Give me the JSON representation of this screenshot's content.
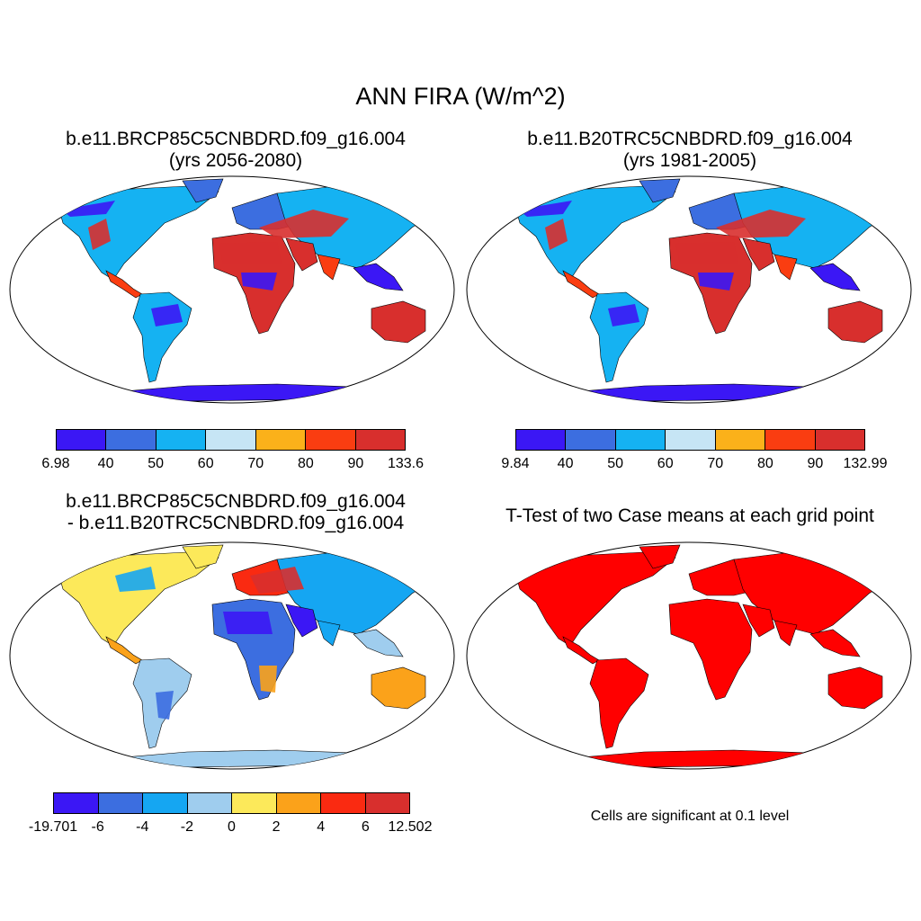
{
  "title": "ANN FIRA (W/m^2)",
  "panels": [
    {
      "line1": "b.e11.BRCP85C5CNBDRD.f09_g16.004",
      "line2": "(yrs 2056-2080)"
    },
    {
      "line1": "b.e11.B20TRC5CNBDRD.f09_g16.004",
      "line2": "(yrs 1981-2005)"
    },
    {
      "line1": "b.e11.BRCP85C5CNBDRD.f09_g16.004",
      "line2": "- b.e11.B20TRC5CNBDRD.f09_g16.004"
    },
    {
      "line1": "T-Test of two Case means at each grid point",
      "line2": ""
    }
  ],
  "colorbars": [
    {
      "labels": [
        "6.98",
        "40",
        "50",
        "60",
        "70",
        "80",
        "90",
        "133.6"
      ],
      "colors": [
        "#3b17f5",
        "#3c6ee0",
        "#15b2f2",
        "#c6e5f5",
        "#fbb11a",
        "#fa3d11",
        "#d82f2d"
      ]
    },
    {
      "labels": [
        "9.84",
        "40",
        "50",
        "60",
        "70",
        "80",
        "90",
        "132.99"
      ],
      "colors": [
        "#3b17f5",
        "#3c6ee0",
        "#15b2f2",
        "#c6e5f5",
        "#fbb11a",
        "#fa3d11",
        "#d82f2d"
      ]
    },
    {
      "labels": [
        "-19.701",
        "-6",
        "-4",
        "-2",
        "0",
        "2",
        "4",
        "6",
        "12.502"
      ],
      "colors": [
        "#3b17f5",
        "#3c6ee0",
        "#15a6f2",
        "#9fcdee",
        "#fce95a",
        "#fba21a",
        "#fa2a11",
        "#d82f2d"
      ]
    }
  ],
  "note": "Cells are significant at 0.1 level"
}
